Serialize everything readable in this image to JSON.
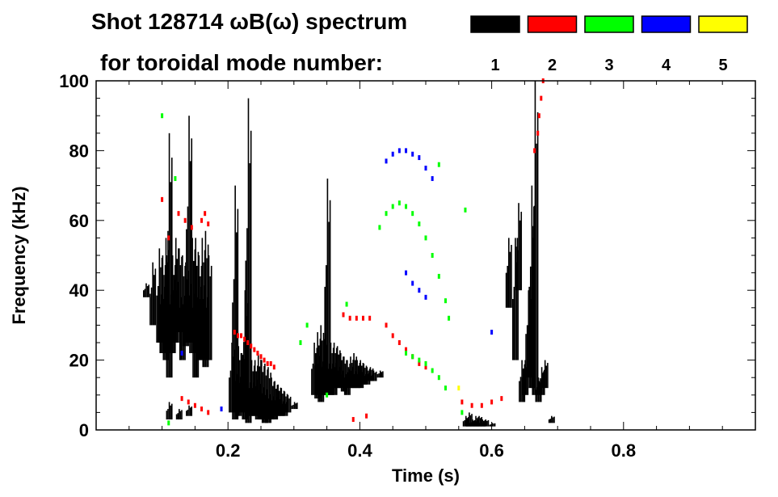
{
  "chart_data": {
    "type": "heatmap",
    "title": "Shot 128714 ωB(ω) spectrum",
    "subtitle": "for toroidal mode number:",
    "xlabel": "Time (s)",
    "ylabel": "Frequency (kHz)",
    "xlim": [
      0,
      1
    ],
    "ylim": [
      0,
      100
    ],
    "xticks": [
      "0.2",
      "0.4",
      "0.6",
      "0.8"
    ],
    "xtick_values": [
      0.2,
      0.4,
      0.6,
      0.8
    ],
    "yticks": [
      "0",
      "20",
      "40",
      "60",
      "80",
      "100"
    ],
    "ytick_values": [
      0,
      20,
      40,
      60,
      80,
      100
    ],
    "legend": [
      {
        "label": "1",
        "color": "#000000"
      },
      {
        "label": "2",
        "color": "#ff0000"
      },
      {
        "label": "3",
        "color": "#00ff00"
      },
      {
        "label": "4",
        "color": "#0000ff"
      },
      {
        "label": "5",
        "color": "#ffff00"
      }
    ],
    "series": [
      {
        "name": "1",
        "color": "#000000",
        "bars": [
          [
            0.075,
            38,
            42
          ],
          [
            0.085,
            30,
            48
          ],
          [
            0.095,
            25,
            52
          ],
          [
            0.1,
            22,
            50
          ],
          [
            0.105,
            20,
            55
          ],
          [
            0.11,
            15,
            85
          ],
          [
            0.115,
            22,
            50
          ],
          [
            0.12,
            25,
            55
          ],
          [
            0.125,
            28,
            52
          ],
          [
            0.13,
            20,
            50
          ],
          [
            0.135,
            24,
            48
          ],
          [
            0.14,
            25,
            90
          ],
          [
            0.145,
            22,
            55
          ],
          [
            0.15,
            15,
            55
          ],
          [
            0.155,
            20,
            50
          ],
          [
            0.16,
            20,
            55
          ],
          [
            0.165,
            18,
            57
          ],
          [
            0.17,
            20,
            50
          ],
          [
            0.11,
            3,
            8
          ],
          [
            0.125,
            3,
            6
          ],
          [
            0.14,
            4,
            7
          ],
          [
            0.205,
            5,
            25
          ],
          [
            0.21,
            3,
            70
          ],
          [
            0.215,
            4,
            24
          ],
          [
            0.22,
            5,
            22
          ],
          [
            0.225,
            3,
            40
          ],
          [
            0.23,
            2,
            95
          ],
          [
            0.235,
            4,
            20
          ],
          [
            0.24,
            4,
            20
          ],
          [
            0.245,
            3,
            22
          ],
          [
            0.25,
            3,
            20
          ],
          [
            0.255,
            2,
            19
          ],
          [
            0.26,
            2,
            18
          ],
          [
            0.265,
            3,
            15
          ],
          [
            0.27,
            3,
            14
          ],
          [
            0.275,
            4,
            13
          ],
          [
            0.28,
            4,
            12
          ],
          [
            0.285,
            4,
            11
          ],
          [
            0.29,
            5,
            10
          ],
          [
            0.3,
            6,
            8
          ],
          [
            0.33,
            10,
            25
          ],
          [
            0.335,
            9,
            28
          ],
          [
            0.34,
            8,
            30
          ],
          [
            0.345,
            10,
            26
          ],
          [
            0.35,
            10,
            72
          ],
          [
            0.355,
            10,
            25
          ],
          [
            0.36,
            10,
            25
          ],
          [
            0.365,
            12,
            24
          ],
          [
            0.37,
            12,
            22
          ],
          [
            0.375,
            11,
            21
          ],
          [
            0.38,
            10,
            20
          ],
          [
            0.385,
            12,
            21
          ],
          [
            0.39,
            12,
            22
          ],
          [
            0.395,
            12,
            20
          ],
          [
            0.4,
            12,
            20
          ],
          [
            0.405,
            13,
            19
          ],
          [
            0.41,
            13,
            18
          ],
          [
            0.415,
            14,
            18
          ],
          [
            0.42,
            14,
            17
          ],
          [
            0.43,
            15,
            17
          ],
          [
            0.56,
            1,
            4
          ],
          [
            0.565,
            1,
            5
          ],
          [
            0.57,
            1,
            3
          ],
          [
            0.575,
            1,
            4
          ],
          [
            0.58,
            1,
            4
          ],
          [
            0.585,
            1,
            3
          ],
          [
            0.59,
            1,
            3
          ],
          [
            0.6,
            1,
            2
          ],
          [
            0.625,
            35,
            55
          ],
          [
            0.635,
            20,
            55
          ],
          [
            0.64,
            40,
            65
          ],
          [
            0.645,
            8,
            20
          ],
          [
            0.65,
            10,
            20
          ],
          [
            0.655,
            15,
            40
          ],
          [
            0.66,
            12,
            70
          ],
          [
            0.665,
            10,
            100
          ],
          [
            0.67,
            8,
            15
          ],
          [
            0.675,
            10,
            18
          ],
          [
            0.68,
            12,
            20
          ],
          [
            0.69,
            2,
            4
          ]
        ]
      },
      {
        "name": "2",
        "color": "#ff0000",
        "points": [
          [
            0.21,
            28
          ],
          [
            0.215,
            27
          ],
          [
            0.22,
            27
          ],
          [
            0.225,
            26
          ],
          [
            0.23,
            25
          ],
          [
            0.235,
            24
          ],
          [
            0.24,
            23
          ],
          [
            0.245,
            22
          ],
          [
            0.25,
            21
          ],
          [
            0.255,
            20
          ],
          [
            0.26,
            19
          ],
          [
            0.265,
            19
          ],
          [
            0.27,
            18
          ],
          [
            0.125,
            62
          ],
          [
            0.135,
            60
          ],
          [
            0.145,
            58
          ],
          [
            0.16,
            60
          ],
          [
            0.165,
            62
          ],
          [
            0.17,
            59
          ],
          [
            0.1,
            66
          ],
          [
            0.11,
            55
          ],
          [
            0.13,
            9
          ],
          [
            0.14,
            8
          ],
          [
            0.15,
            7
          ],
          [
            0.16,
            6
          ],
          [
            0.17,
            5
          ],
          [
            0.375,
            33
          ],
          [
            0.385,
            32
          ],
          [
            0.395,
            32
          ],
          [
            0.405,
            32
          ],
          [
            0.415,
            32
          ],
          [
            0.44,
            30
          ],
          [
            0.45,
            27
          ],
          [
            0.46,
            25
          ],
          [
            0.47,
            23
          ],
          [
            0.48,
            21
          ],
          [
            0.49,
            19
          ],
          [
            0.5,
            18
          ],
          [
            0.555,
            8
          ],
          [
            0.57,
            7
          ],
          [
            0.585,
            7
          ],
          [
            0.6,
            8
          ],
          [
            0.615,
            9
          ],
          [
            0.665,
            80
          ],
          [
            0.67,
            85
          ],
          [
            0.672,
            90
          ],
          [
            0.675,
            95
          ],
          [
            0.678,
            100
          ],
          [
            0.39,
            3
          ],
          [
            0.41,
            4
          ]
        ]
      },
      {
        "name": "3",
        "color": "#00ff00",
        "points": [
          [
            0.43,
            58
          ],
          [
            0.44,
            62
          ],
          [
            0.45,
            64
          ],
          [
            0.46,
            65
          ],
          [
            0.47,
            64
          ],
          [
            0.48,
            62
          ],
          [
            0.49,
            59
          ],
          [
            0.5,
            55
          ],
          [
            0.51,
            50
          ],
          [
            0.52,
            44
          ],
          [
            0.53,
            37
          ],
          [
            0.535,
            32
          ],
          [
            0.47,
            22
          ],
          [
            0.48,
            21
          ],
          [
            0.49,
            20
          ],
          [
            0.5,
            19
          ],
          [
            0.51,
            17
          ],
          [
            0.52,
            15
          ],
          [
            0.53,
            12
          ],
          [
            0.52,
            76
          ],
          [
            0.56,
            63
          ],
          [
            0.555,
            5
          ],
          [
            0.1,
            90
          ],
          [
            0.12,
            72
          ],
          [
            0.32,
            30
          ],
          [
            0.38,
            36
          ],
          [
            0.31,
            25
          ],
          [
            0.11,
            2
          ],
          [
            0.35,
            10
          ]
        ]
      },
      {
        "name": "4",
        "color": "#0000ff",
        "points": [
          [
            0.44,
            77
          ],
          [
            0.45,
            79
          ],
          [
            0.46,
            80
          ],
          [
            0.47,
            80
          ],
          [
            0.48,
            79
          ],
          [
            0.49,
            78
          ],
          [
            0.5,
            75
          ],
          [
            0.51,
            72
          ],
          [
            0.47,
            45
          ],
          [
            0.48,
            42
          ],
          [
            0.49,
            40
          ],
          [
            0.5,
            38
          ],
          [
            0.13,
            22
          ],
          [
            0.19,
            6
          ],
          [
            0.6,
            28
          ]
        ]
      },
      {
        "name": "5",
        "color": "#ffff00",
        "points": [
          [
            0.55,
            12
          ]
        ]
      }
    ]
  }
}
